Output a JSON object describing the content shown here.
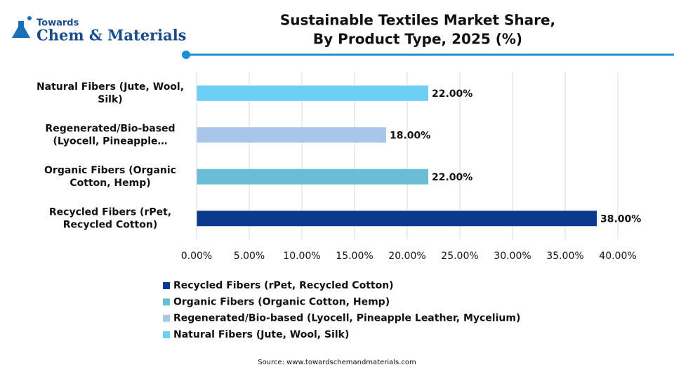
{
  "logo": {
    "line1": "Towards",
    "line2": "Chem & Materials"
  },
  "chart_data": {
    "type": "hbar",
    "title": [
      "Sustainable Textiles Market Share,",
      "By Product Type, 2025 (%)"
    ],
    "categories": [
      "Recycled Fibers (rPet, Recycled Cotton)",
      "Organic Fibers (Organic Cotton, Hemp)",
      "Regenerated/Bio-based (Lyocell, Pineapple…",
      "Natural Fibers (Jute, Wool, Silk)"
    ],
    "series": [
      {
        "name": "Recycled Fibers (rPet, Recycled Cotton)",
        "color": "#0b3a8d",
        "values": [
          38,
          null,
          null,
          null
        ],
        "value_labels": [
          "38.00%",
          null,
          null,
          null
        ]
      },
      {
        "name": "Organic Fibers (Organic Cotton, Hemp)",
        "color": "#6bbdd6",
        "values": [
          null,
          22,
          null,
          null
        ],
        "value_labels": [
          null,
          "22.00%",
          null,
          null
        ]
      },
      {
        "name": "Regenerated/Bio-based (Lyocell, Pineapple Leather, Mycelium)",
        "color": "#a9c5e8",
        "values": [
          null,
          null,
          18,
          null
        ],
        "value_labels": [
          null,
          null,
          "18.00%",
          null
        ]
      },
      {
        "name": "Natural Fibers (Jute, Wool, Silk)",
        "color": "#6dcff6",
        "values": [
          null,
          null,
          null,
          22
        ],
        "value_labels": [
          null,
          null,
          null,
          "22.00%"
        ]
      }
    ],
    "xlim": [
      0,
      40
    ],
    "xticks": [
      {
        "value": 0,
        "label": "0.00%"
      },
      {
        "value": 5,
        "label": "5.00%"
      },
      {
        "value": 10,
        "label": "10.00%"
      },
      {
        "value": 15,
        "label": "15.00%"
      },
      {
        "value": 20,
        "label": "20.00%"
      },
      {
        "value": 25,
        "label": "25.00%"
      },
      {
        "value": 30,
        "label": "30.00%"
      },
      {
        "value": 35,
        "label": "35.00%"
      },
      {
        "value": 40,
        "label": "40.00%"
      }
    ],
    "grid": true,
    "source": "Source: www.towardschemandmaterials.com"
  }
}
